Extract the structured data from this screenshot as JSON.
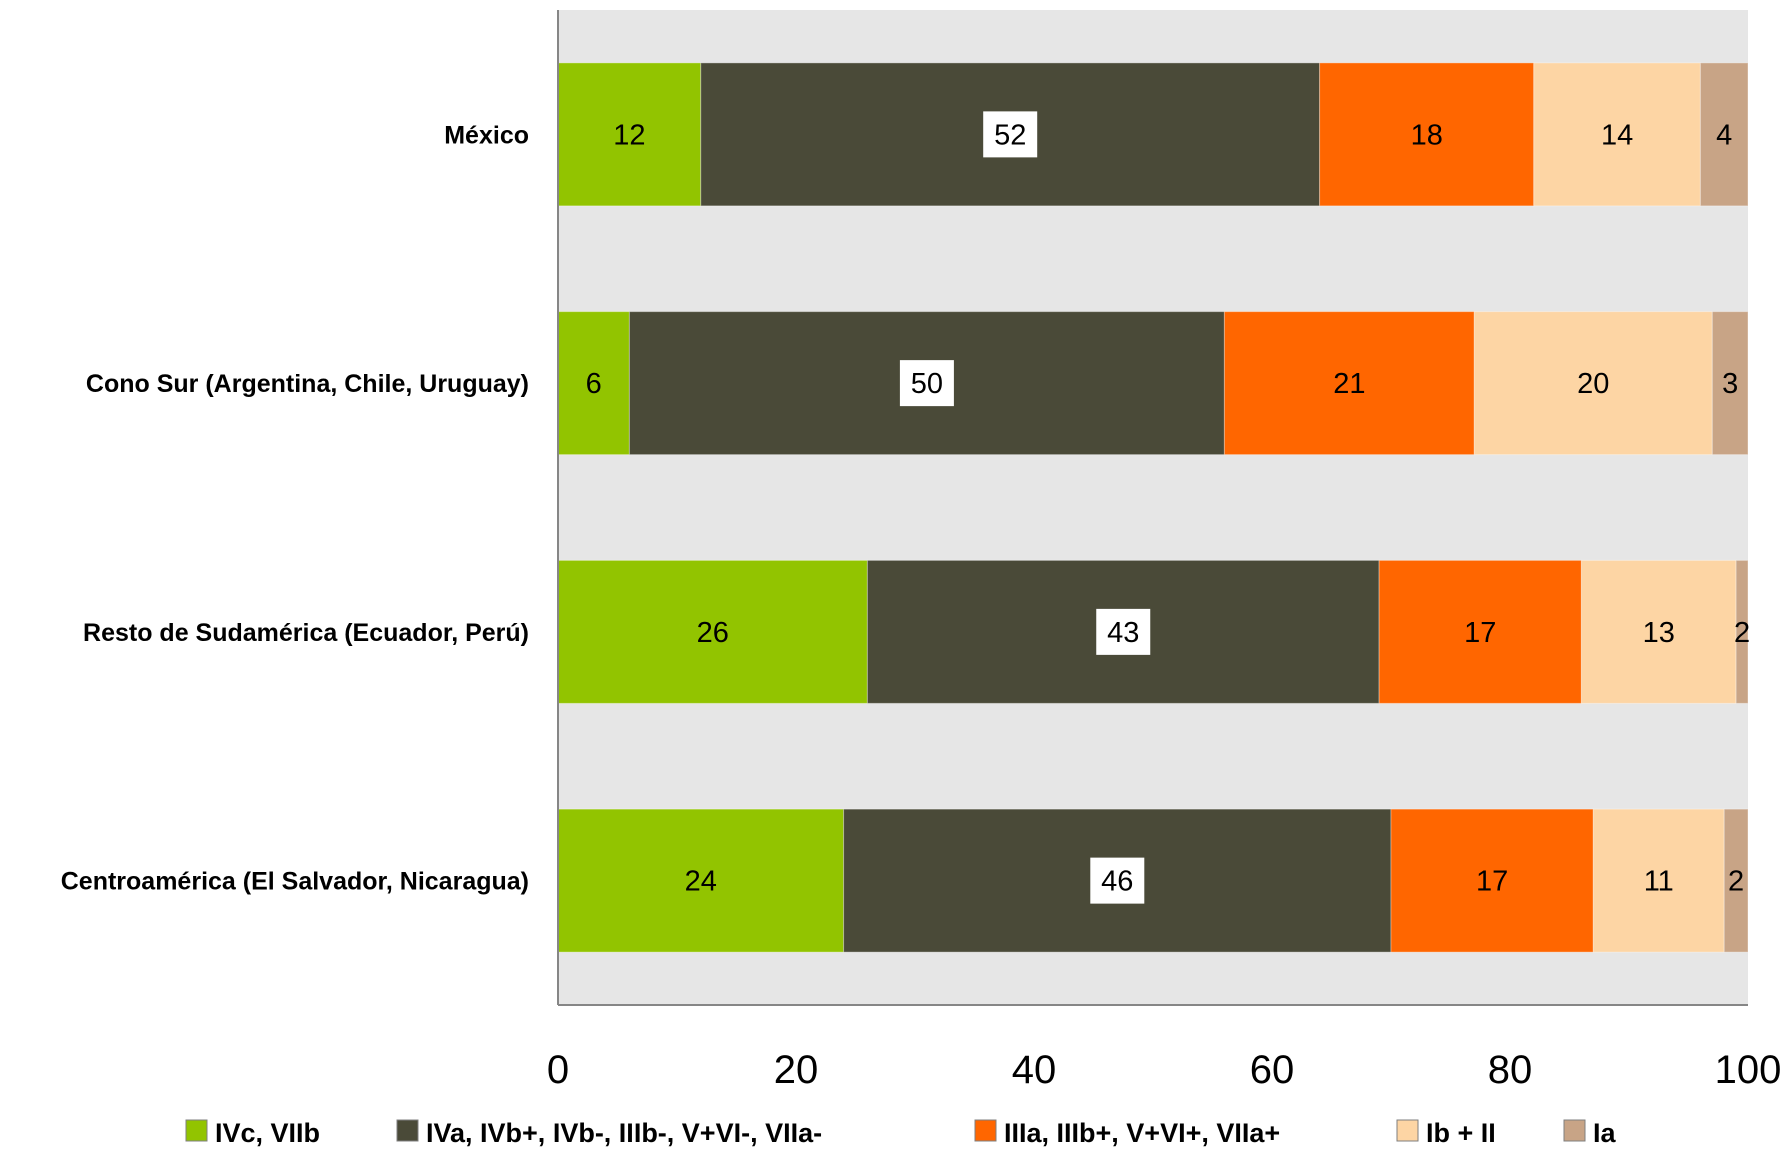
{
  "chart_data": {
    "type": "bar",
    "orientation": "horizontal",
    "stacked": true,
    "categories": [
      "México",
      "Cono Sur (Argentina, Chile, Uruguay)",
      "Resto de Sudamérica (Ecuador, Perú)",
      "Centroamérica (El Salvador, Nicaragua)"
    ],
    "series": [
      {
        "name": "IVc, VIIb",
        "color": "#92c400",
        "values": [
          12,
          6,
          26,
          24
        ]
      },
      {
        "name": "IVa, IVb+, IVb-, IIIb-, V+VI-, VIIa-",
        "color": "#4a4a38",
        "values": [
          52,
          50,
          43,
          46
        ]
      },
      {
        "name": "IIIa, IIIb+, V+VI+, VIIa+",
        "color": "#ff6600",
        "values": [
          18,
          21,
          17,
          17
        ]
      },
      {
        "name": "Ib + II",
        "color": "#fdd5a4",
        "values": [
          14,
          20,
          13,
          11
        ]
      },
      {
        "name": "Ia",
        "color": "#c8a486",
        "values": [
          4,
          3,
          2,
          2
        ]
      }
    ],
    "xlim": [
      0,
      100
    ],
    "xticks": [
      0,
      20,
      40,
      60,
      80,
      100
    ],
    "grid": false,
    "legend": "bottom",
    "plot_background": "#e6e6e6",
    "highlight_label_series": 1
  }
}
